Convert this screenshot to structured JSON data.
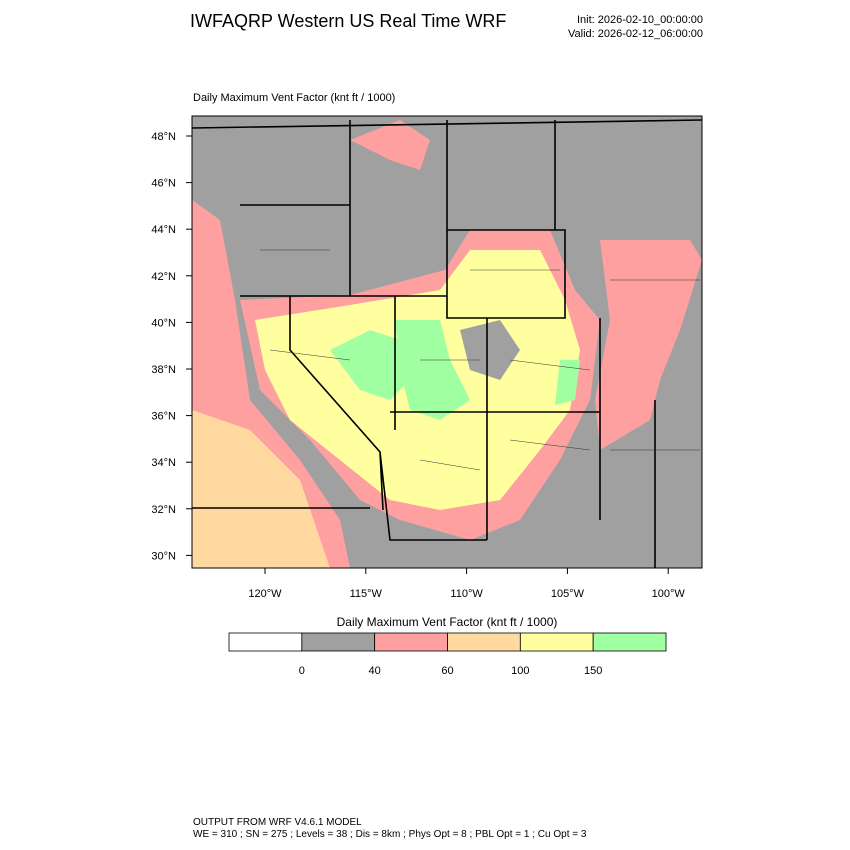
{
  "header": {
    "title": "IWFAQRP Western US Real Time WRF",
    "init": "Init: 2026-02-10_00:00:00",
    "valid": "Valid: 2026-02-12_06:00:00"
  },
  "map": {
    "subtitle": "Daily Maximum Vent Factor   (knt ft / 1000)",
    "lat_labels": [
      "48°N",
      "46°N",
      "44°N",
      "42°N",
      "40°N",
      "38°N",
      "36°N",
      "34°N",
      "32°N",
      "30°N"
    ],
    "lon_labels": [
      "120°W",
      "115°W",
      "110°W",
      "105°W",
      "100°W"
    ]
  },
  "colorbar": {
    "title": "Daily Maximum Vent Factor  (knt ft / 1000)",
    "levels": [
      0,
      40,
      60,
      100,
      150
    ],
    "colors": [
      "#ffffff",
      "#a0a0a0",
      "#ffa0a0",
      "#ffd9a0",
      "#ffff9f",
      "#a0ffa0"
    ]
  },
  "footer": {
    "line1": "OUTPUT FROM WRF V4.6.1 MODEL",
    "line2": "WE = 310 ; SN = 275 ; Levels = 38 ; Dis = 8km ; Phys Opt = 8 ; PBL Opt = 1 ; Cu Opt = 3"
  }
}
